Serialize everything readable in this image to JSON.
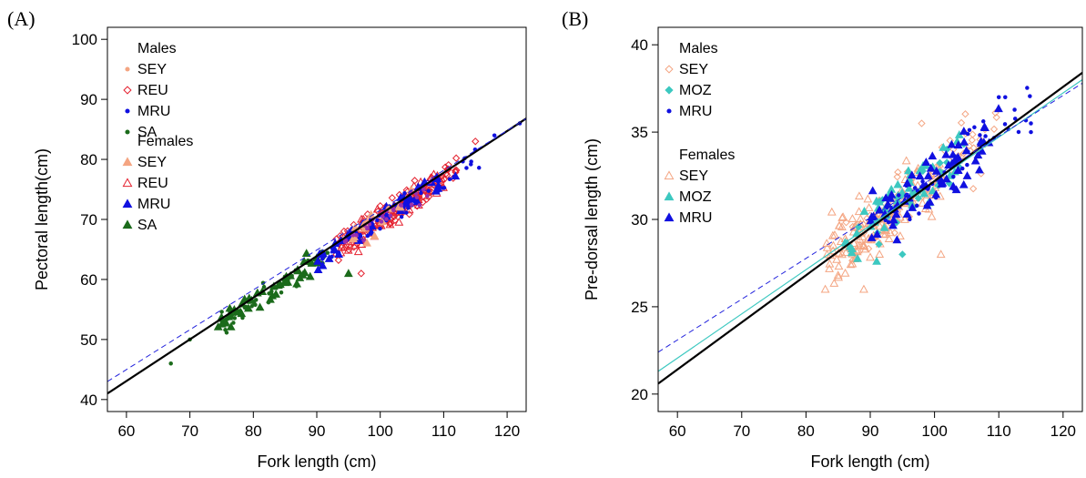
{
  "chart_data": [
    {
      "type": "scatter",
      "panel_label": "(A)",
      "xlabel": "Fork length (cm)",
      "ylabel": "Pectoral length(cm)",
      "xlim": [
        57,
        123
      ],
      "ylim": [
        38,
        102
      ],
      "xticks": [
        60,
        70,
        80,
        90,
        100,
        110,
        120
      ],
      "yticks": [
        40,
        50,
        60,
        70,
        80,
        90,
        100
      ],
      "legend": {
        "position": "top-left",
        "groups": [
          {
            "title": "Males",
            "entries": [
              {
                "label": "SEY",
                "color": "#F4A582",
                "marker": "dot"
              },
              {
                "label": "REU",
                "color": "#E4202E",
                "marker": "diamond-open"
              },
              {
                "label": "MRU",
                "color": "#1010E0",
                "marker": "dot"
              },
              {
                "label": "SA",
                "color": "#1B6B1B",
                "marker": "dot"
              }
            ]
          },
          {
            "title": "Females",
            "entries": [
              {
                "label": "SEY",
                "color": "#F4A582",
                "marker": "triangle"
              },
              {
                "label": "REU",
                "color": "#E4202E",
                "marker": "triangle-open"
              },
              {
                "label": "MRU",
                "color": "#1010E0",
                "marker": "triangle"
              },
              {
                "label": "SA",
                "color": "#1B6B1B",
                "marker": "triangle"
              }
            ]
          }
        ]
      },
      "lines": [
        {
          "color": "#000000",
          "style": "solid",
          "width": 2.2,
          "x": [
            57,
            123
          ],
          "y": [
            41.0,
            86.8
          ]
        },
        {
          "color": "#2222DD",
          "style": "dashed",
          "width": 1,
          "x": [
            57,
            123
          ],
          "y": [
            43.0,
            86.8
          ]
        }
      ],
      "clusters": [
        {
          "color": "#1B6B1B",
          "marker": "triangle",
          "n": 45,
          "x": [
            74,
            90
          ],
          "slope": 0.69,
          "intercept": 1.0,
          "noise": 1.5
        },
        {
          "color": "#1B6B1B",
          "marker": "dot",
          "n": 45,
          "x": [
            75,
            92
          ],
          "slope": 0.69,
          "intercept": 1.0,
          "noise": 1.5
        },
        {
          "color": "#E4202E",
          "marker": "diamond-open",
          "n": 110,
          "x": [
            93,
            112
          ],
          "slope": 0.69,
          "intercept": 1.0,
          "noise": 1.6
        },
        {
          "color": "#E4202E",
          "marker": "triangle-open",
          "n": 70,
          "x": [
            93,
            110
          ],
          "slope": 0.69,
          "intercept": 1.0,
          "noise": 1.6
        },
        {
          "color": "#1010E0",
          "marker": "dot",
          "n": 55,
          "x": [
            90,
            116
          ],
          "slope": 0.69,
          "intercept": 1.0,
          "noise": 1.5
        },
        {
          "color": "#1010E0",
          "marker": "triangle",
          "n": 45,
          "x": [
            90,
            112
          ],
          "slope": 0.69,
          "intercept": 1.0,
          "noise": 1.5
        },
        {
          "color": "#F4A582",
          "marker": "triangle",
          "n": 15,
          "x": [
            95,
            106
          ],
          "slope": 0.69,
          "intercept": 1.0,
          "noise": 1.5
        },
        {
          "color": "#9B2FAE",
          "marker": "dot",
          "n": 30,
          "x": [
            94,
            108
          ],
          "slope": 0.69,
          "intercept": 1.0,
          "noise": 1.2
        }
      ],
      "points": [
        {
          "x": 67,
          "y": 46,
          "color": "#1B6B1B",
          "marker": "dot"
        },
        {
          "x": 70,
          "y": 50,
          "color": "#1B6B1B",
          "marker": "dot"
        },
        {
          "x": 88,
          "y": 63,
          "color": "#1B6B1B",
          "marker": "triangle"
        },
        {
          "x": 95,
          "y": 61,
          "color": "#1B6B1B",
          "marker": "triangle"
        },
        {
          "x": 97,
          "y": 61,
          "color": "#E4202E",
          "marker": "diamond-open"
        },
        {
          "x": 122,
          "y": 86,
          "color": "#1010E0",
          "marker": "dot"
        },
        {
          "x": 118,
          "y": 84,
          "color": "#1010E0",
          "marker": "dot"
        },
        {
          "x": 115,
          "y": 83,
          "color": "#E4202E",
          "marker": "diamond-open"
        }
      ]
    },
    {
      "type": "scatter",
      "panel_label": "(B)",
      "xlabel": "Fork length (cm)",
      "ylabel": "Pre-dorsal length (cm)",
      "xlim": [
        57,
        123
      ],
      "ylim": [
        19,
        41
      ],
      "xticks": [
        60,
        70,
        80,
        90,
        100,
        110,
        120
      ],
      "yticks": [
        20,
        25,
        30,
        35,
        40
      ],
      "legend": {
        "position": "top-left",
        "groups": [
          {
            "title": "Males",
            "entries": [
              {
                "label": "SEY",
                "color": "#F4A582",
                "marker": "diamond-open"
              },
              {
                "label": "MOZ",
                "color": "#3CC8C0",
                "marker": "diamond"
              },
              {
                "label": "MRU",
                "color": "#1010E0",
                "marker": "dot"
              }
            ]
          },
          {
            "title": "Females",
            "entries": [
              {
                "label": "SEY",
                "color": "#F4A582",
                "marker": "triangle-open"
              },
              {
                "label": "MOZ",
                "color": "#3CC8C0",
                "marker": "triangle"
              },
              {
                "label": "MRU",
                "color": "#1010E0",
                "marker": "triangle"
              }
            ]
          }
        ]
      },
      "lines": [
        {
          "color": "#3CC8C0",
          "style": "solid",
          "width": 1.2,
          "x": [
            57,
            123
          ],
          "y": [
            21.3,
            38.0
          ]
        },
        {
          "color": "#000000",
          "style": "solid",
          "width": 2.2,
          "x": [
            57,
            123
          ],
          "y": [
            20.6,
            38.4
          ]
        },
        {
          "color": "#2222DD",
          "style": "dashed",
          "width": 1,
          "x": [
            57,
            123
          ],
          "y": [
            22.4,
            37.8
          ]
        }
      ],
      "clusters": [
        {
          "color": "#F4A582",
          "marker": "triangle-open",
          "n": 150,
          "x": [
            83,
            101
          ],
          "slope": 0.27,
          "intercept": 5.4,
          "noise": 1.3
        },
        {
          "color": "#F4A582",
          "marker": "diamond-open",
          "n": 60,
          "x": [
            86,
            111
          ],
          "slope": 0.27,
          "intercept": 5.4,
          "noise": 1.3
        },
        {
          "color": "#3CC8C0",
          "marker": "triangle",
          "n": 40,
          "x": [
            86,
            104
          ],
          "slope": 0.27,
          "intercept": 5.4,
          "noise": 1.2
        },
        {
          "color": "#3CC8C0",
          "marker": "diamond",
          "n": 25,
          "x": [
            88,
            105
          ],
          "slope": 0.27,
          "intercept": 5.4,
          "noise": 1.2
        },
        {
          "color": "#1010E0",
          "marker": "triangle",
          "n": 70,
          "x": [
            90,
            110
          ],
          "slope": 0.27,
          "intercept": 5.4,
          "noise": 1.1
        },
        {
          "color": "#1010E0",
          "marker": "dot",
          "n": 45,
          "x": [
            92,
            115
          ],
          "slope": 0.27,
          "intercept": 5.4,
          "noise": 1.1
        }
      ],
      "points": [
        {
          "x": 83,
          "y": 26,
          "color": "#F4A582",
          "marker": "triangle-open"
        },
        {
          "x": 85,
          "y": 26.8,
          "color": "#F4A582",
          "marker": "triangle-open"
        },
        {
          "x": 89,
          "y": 26,
          "color": "#F4A582",
          "marker": "triangle-open"
        },
        {
          "x": 101,
          "y": 28,
          "color": "#F4A582",
          "marker": "triangle-open"
        },
        {
          "x": 98,
          "y": 35.5,
          "color": "#F4A582",
          "marker": "diamond-open"
        },
        {
          "x": 110,
          "y": 37,
          "color": "#1010E0",
          "marker": "dot"
        },
        {
          "x": 111,
          "y": 37,
          "color": "#1010E0",
          "marker": "dot"
        },
        {
          "x": 115,
          "y": 35.5,
          "color": "#1010E0",
          "marker": "dot"
        },
        {
          "x": 115,
          "y": 35,
          "color": "#1010E0",
          "marker": "dot"
        },
        {
          "x": 91,
          "y": 27.6,
          "color": "#3CC8C0",
          "marker": "triangle"
        },
        {
          "x": 95,
          "y": 28,
          "color": "#3CC8C0",
          "marker": "diamond"
        }
      ]
    }
  ]
}
